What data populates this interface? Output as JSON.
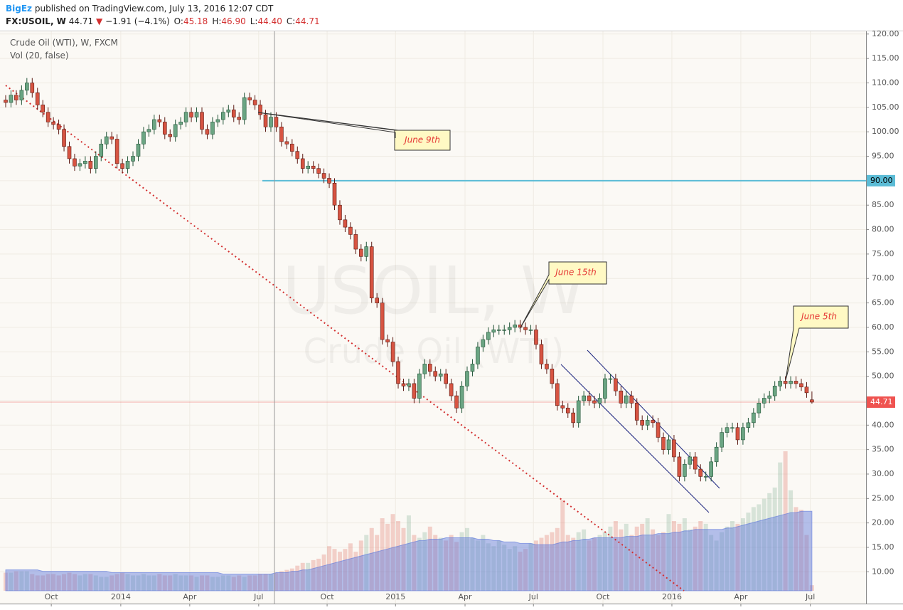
{
  "header": {
    "author": "BigEz",
    "published": "published on TradingView.com, July 13, 2016 12:07 CDT",
    "symbol": "FX:USOIL, W",
    "last": "44.71",
    "arrow": "▼",
    "change": "−1.91 (−4.1%)",
    "ohlc": [
      {
        "key": "O:",
        "value": "45.18"
      },
      {
        "key": "H:",
        "value": "46.90"
      },
      {
        "key": "L:",
        "value": "44.40"
      },
      {
        "key": "C:",
        "value": "44.71"
      }
    ]
  },
  "chart_data": {
    "type": "candlestick",
    "title": "Crude Oil (WTI), W, FXCM",
    "watermark": [
      "USOIL, W",
      "Crude Oil (WTI)"
    ],
    "up_color": "#6ba583",
    "down_color": "#d75442",
    "grid": true,
    "ylim": [
      3.5,
      120.7
    ],
    "yticks": [
      {
        "value": 10,
        "label": "10.00"
      },
      {
        "value": 15,
        "label": "15.00"
      },
      {
        "value": 20,
        "label": "20.00"
      },
      {
        "value": 25,
        "label": "25.00"
      },
      {
        "value": 30,
        "label": "30.00"
      },
      {
        "value": 35,
        "label": "35.00"
      },
      {
        "value": 40,
        "label": "40.00"
      },
      {
        "value": 45,
        "label": "45.00"
      },
      {
        "value": 50,
        "label": "50.00"
      },
      {
        "value": 55,
        "label": "55.00"
      },
      {
        "value": 60,
        "label": "60.00"
      },
      {
        "value": 65,
        "label": "65.00"
      },
      {
        "value": 70,
        "label": "70.00"
      },
      {
        "value": 75,
        "label": "75.00"
      },
      {
        "value": 80,
        "label": "80.00"
      },
      {
        "value": 85,
        "label": "85.00"
      },
      {
        "value": 90,
        "label": "90.00"
      },
      {
        "value": 95,
        "label": "95.00"
      },
      {
        "value": 100,
        "label": "100.00"
      },
      {
        "value": 105,
        "label": "105.00"
      },
      {
        "value": 110,
        "label": "110.00"
      },
      {
        "value": 115,
        "label": "115.00"
      },
      {
        "value": 120,
        "label": "120.00"
      }
    ],
    "xlim": [
      -1.07,
      162.2
    ],
    "xticks": [
      {
        "value": 8.6,
        "label": "Oct"
      },
      {
        "value": 21.7,
        "label": "2014"
      },
      {
        "value": 34.7,
        "label": "Apr"
      },
      {
        "value": 47.7,
        "label": "Jul"
      },
      {
        "value": 60.6,
        "label": "Oct"
      },
      {
        "value": 73.5,
        "label": "2015"
      },
      {
        "value": 86.6,
        "label": "Apr"
      },
      {
        "value": 99.5,
        "label": "Jul"
      },
      {
        "value": 112.6,
        "label": "Oct"
      },
      {
        "value": 125.6,
        "label": "2016"
      },
      {
        "value": 138.6,
        "label": "Apr"
      },
      {
        "value": 151.7,
        "label": "Jul"
      }
    ],
    "hlines": [
      {
        "value": 90,
        "label": "90.00",
        "color": "#5bbcd6"
      }
    ],
    "last_price": 44.71,
    "last_color": "#ef5350",
    "annotations": [
      "June 9th",
      "June 15th",
      "June 5th"
    ],
    "candles": [
      [
        106.5,
        107.5,
        105.0,
        106.0
      ],
      [
        106.0,
        108.5,
        105.0,
        107.5
      ],
      [
        107.5,
        108.5,
        105.5,
        106.5
      ],
      [
        106.5,
        109.5,
        105.5,
        108.5
      ],
      [
        108.5,
        111.0,
        107.5,
        110.0
      ],
      [
        110.0,
        111.0,
        107.0,
        108.0
      ],
      [
        108.0,
        109.0,
        104.5,
        105.5
      ],
      [
        105.5,
        106.5,
        103.0,
        104.0
      ],
      [
        104.0,
        105.0,
        101.0,
        102.0
      ],
      [
        102.0,
        103.0,
        100.5,
        101.5
      ],
      [
        101.5,
        102.5,
        99.5,
        100.5
      ],
      [
        100.5,
        101.5,
        96.0,
        97.0
      ],
      [
        97.0,
        98.0,
        93.5,
        94.5
      ],
      [
        94.5,
        95.5,
        92.0,
        93.0
      ],
      [
        93.0,
        94.5,
        92.0,
        93.5
      ],
      [
        93.5,
        95.0,
        92.5,
        94.0
      ],
      [
        94.0,
        95.0,
        91.5,
        92.5
      ],
      [
        92.5,
        96.0,
        91.5,
        95.0
      ],
      [
        95.0,
        98.5,
        94.0,
        97.5
      ],
      [
        97.5,
        100.0,
        96.5,
        99.0
      ],
      [
        99.0,
        100.0,
        97.5,
        98.5
      ],
      [
        98.5,
        99.5,
        92.5,
        93.5
      ],
      [
        93.5,
        94.5,
        91.5,
        92.5
      ],
      [
        92.5,
        95.0,
        91.5,
        94.0
      ],
      [
        94.0,
        96.0,
        93.0,
        95.0
      ],
      [
        95.0,
        98.5,
        94.0,
        97.5
      ],
      [
        97.5,
        101.0,
        96.5,
        100.0
      ],
      [
        100.0,
        101.5,
        99.0,
        100.5
      ],
      [
        100.5,
        103.5,
        99.5,
        102.5
      ],
      [
        102.5,
        103.5,
        101.0,
        102.0
      ],
      [
        102.0,
        103.0,
        98.5,
        99.5
      ],
      [
        99.5,
        100.5,
        98.0,
        99.0
      ],
      [
        99.0,
        102.5,
        98.0,
        101.5
      ],
      [
        101.5,
        103.0,
        100.5,
        102.0
      ],
      [
        102.0,
        105.0,
        101.0,
        104.0
      ],
      [
        104.0,
        105.0,
        102.0,
        103.0
      ],
      [
        103.0,
        105.0,
        102.0,
        104.0
      ],
      [
        104.0,
        105.0,
        99.5,
        100.5
      ],
      [
        100.5,
        101.5,
        98.5,
        99.5
      ],
      [
        99.5,
        103.0,
        98.5,
        102.0
      ],
      [
        102.0,
        103.5,
        101.0,
        102.5
      ],
      [
        102.5,
        105.0,
        101.5,
        104.0
      ],
      [
        104.0,
        105.5,
        103.0,
        104.5
      ],
      [
        104.5,
        105.5,
        102.0,
        103.0
      ],
      [
        103.0,
        104.0,
        101.5,
        102.5
      ],
      [
        102.5,
        108.0,
        101.5,
        107.0
      ],
      [
        107.0,
        108.0,
        105.5,
        106.5
      ],
      [
        106.5,
        107.5,
        104.5,
        105.5
      ],
      [
        105.5,
        106.5,
        102.5,
        103.5
      ],
      [
        103.5,
        104.5,
        100.0,
        101.0
      ],
      [
        101.0,
        104.0,
        100.0,
        103.0
      ],
      [
        103.0,
        104.0,
        100.0,
        101.0
      ],
      [
        101.0,
        102.0,
        97.0,
        98.0
      ],
      [
        98.0,
        99.0,
        96.5,
        97.5
      ],
      [
        97.5,
        98.5,
        95.0,
        96.0
      ],
      [
        96.0,
        97.0,
        93.5,
        94.5
      ],
      [
        94.5,
        95.5,
        91.5,
        92.5
      ],
      [
        92.5,
        94.0,
        91.5,
        93.0
      ],
      [
        93.0,
        94.0,
        91.5,
        92.5
      ],
      [
        92.5,
        93.5,
        90.5,
        91.5
      ],
      [
        91.5,
        92.5,
        89.5,
        90.5
      ],
      [
        90.5,
        91.5,
        88.5,
        89.5
      ],
      [
        89.5,
        90.5,
        84.0,
        85.0
      ],
      [
        85.0,
        86.0,
        81.0,
        82.0
      ],
      [
        82.0,
        83.0,
        79.5,
        80.5
      ],
      [
        80.5,
        81.5,
        78.0,
        79.0
      ],
      [
        79.0,
        80.0,
        75.0,
        76.0
      ],
      [
        76.0,
        77.0,
        73.5,
        74.5
      ],
      [
        74.5,
        77.5,
        73.5,
        76.5
      ],
      [
        76.5,
        77.5,
        65.0,
        66.0
      ],
      [
        66.0,
        67.0,
        64.0,
        65.0
      ],
      [
        65.0,
        66.0,
        56.5,
        57.5
      ],
      [
        57.5,
        58.5,
        56.0,
        57.0
      ],
      [
        57.0,
        58.0,
        52.0,
        53.0
      ],
      [
        53.0,
        54.0,
        47.5,
        48.5
      ],
      [
        48.5,
        49.5,
        47.0,
        48.0
      ],
      [
        48.0,
        49.5,
        47.0,
        48.5
      ],
      [
        48.5,
        49.5,
        44.5,
        45.5
      ],
      [
        45.5,
        51.5,
        44.5,
        50.5
      ],
      [
        50.5,
        53.5,
        49.5,
        52.5
      ],
      [
        52.5,
        53.5,
        50.0,
        51.0
      ],
      [
        51.0,
        52.0,
        49.0,
        50.0
      ],
      [
        50.0,
        51.5,
        49.0,
        50.5
      ],
      [
        50.5,
        51.5,
        47.5,
        48.5
      ],
      [
        48.5,
        49.5,
        45.0,
        46.0
      ],
      [
        46.0,
        47.0,
        42.5,
        43.5
      ],
      [
        43.5,
        49.0,
        42.5,
        48.0
      ],
      [
        48.0,
        52.0,
        47.0,
        51.0
      ],
      [
        51.0,
        53.5,
        50.0,
        52.5
      ],
      [
        52.5,
        57.0,
        51.5,
        56.0
      ],
      [
        56.0,
        58.5,
        55.0,
        57.5
      ],
      [
        57.5,
        60.0,
        56.5,
        59.0
      ],
      [
        59.0,
        60.5,
        58.0,
        59.5
      ],
      [
        59.5,
        60.5,
        58.5,
        59.5
      ],
      [
        59.5,
        60.5,
        58.5,
        59.5
      ],
      [
        59.5,
        61.0,
        58.5,
        60.0
      ],
      [
        60.0,
        61.5,
        59.0,
        60.5
      ],
      [
        60.5,
        61.5,
        59.0,
        60.0
      ],
      [
        60.0,
        61.0,
        58.5,
        59.5
      ],
      [
        59.5,
        60.5,
        58.5,
        59.5
      ],
      [
        59.5,
        60.5,
        55.5,
        56.5
      ],
      [
        56.5,
        57.5,
        51.5,
        52.5
      ],
      [
        52.5,
        53.5,
        50.5,
        51.5
      ],
      [
        51.5,
        52.5,
        47.5,
        48.5
      ],
      [
        48.5,
        49.5,
        43.0,
        44.0
      ],
      [
        44.0,
        45.0,
        42.5,
        43.5
      ],
      [
        43.5,
        44.5,
        41.5,
        42.5
      ],
      [
        42.5,
        43.5,
        39.5,
        40.5
      ],
      [
        40.5,
        46.0,
        39.5,
        45.0
      ],
      [
        45.0,
        47.0,
        44.0,
        46.0
      ],
      [
        46.0,
        47.0,
        44.0,
        45.0
      ],
      [
        45.0,
        46.0,
        43.5,
        44.5
      ],
      [
        44.5,
        46.5,
        43.5,
        45.5
      ],
      [
        45.5,
        50.5,
        44.5,
        49.5
      ],
      [
        49.5,
        50.5,
        48.5,
        49.5
      ],
      [
        49.5,
        50.5,
        46.0,
        47.0
      ],
      [
        47.0,
        48.0,
        43.5,
        44.5
      ],
      [
        44.5,
        47.0,
        43.5,
        46.0
      ],
      [
        46.0,
        47.0,
        43.5,
        44.5
      ],
      [
        44.5,
        45.5,
        40.0,
        41.0
      ],
      [
        41.0,
        42.0,
        39.0,
        40.0
      ],
      [
        40.0,
        42.0,
        39.0,
        41.0
      ],
      [
        41.0,
        42.0,
        39.5,
        40.5
      ],
      [
        40.5,
        41.5,
        36.5,
        37.5
      ],
      [
        37.5,
        38.5,
        34.0,
        35.0
      ],
      [
        35.0,
        38.0,
        34.0,
        37.0
      ],
      [
        37.0,
        38.0,
        32.5,
        33.5
      ],
      [
        33.5,
        34.5,
        28.5,
        29.5
      ],
      [
        29.5,
        33.0,
        28.5,
        32.0
      ],
      [
        32.0,
        34.5,
        31.0,
        33.5
      ],
      [
        33.5,
        34.5,
        30.0,
        31.0
      ],
      [
        31.0,
        32.0,
        28.5,
        29.5
      ],
      [
        29.5,
        30.5,
        28.5,
        29.5
      ],
      [
        29.5,
        33.5,
        28.5,
        32.5
      ],
      [
        32.5,
        36.5,
        31.5,
        35.5
      ],
      [
        35.5,
        39.5,
        34.5,
        38.5
      ],
      [
        38.5,
        40.5,
        37.5,
        39.5
      ],
      [
        39.5,
        40.5,
        38.5,
        39.5
      ],
      [
        39.5,
        40.5,
        36.0,
        37.0
      ],
      [
        37.0,
        40.5,
        36.0,
        39.5
      ],
      [
        39.5,
        41.5,
        38.5,
        40.5
      ],
      [
        40.5,
        43.5,
        39.5,
        42.5
      ],
      [
        42.5,
        45.5,
        41.5,
        44.5
      ],
      [
        44.5,
        46.5,
        43.5,
        45.5
      ],
      [
        45.5,
        47.0,
        44.5,
        46.0
      ],
      [
        46.0,
        49.0,
        45.0,
        48.0
      ],
      [
        48.0,
        50.0,
        47.0,
        49.0
      ],
      [
        49.0,
        50.0,
        47.5,
        48.5
      ],
      [
        48.5,
        50.0,
        47.5,
        49.0
      ],
      [
        49.0,
        50.0,
        47.5,
        48.5
      ],
      [
        48.5,
        49.5,
        47.0,
        47.8
      ],
      [
        47.8,
        48.8,
        45.6,
        46.62
      ],
      [
        45.18,
        46.9,
        44.4,
        44.71
      ]
    ],
    "volume": {
      "name": "Vol (20, false)",
      "ylim": [
        0,
        100
      ],
      "ma_color": "#5b76dc",
      "values": [
        13,
        13,
        14,
        14,
        14,
        12,
        11,
        11,
        12,
        12,
        11,
        12,
        13,
        12,
        11,
        12,
        12,
        11,
        10,
        10,
        11,
        12,
        13,
        12,
        11,
        11,
        12,
        11,
        11,
        12,
        11,
        11,
        12,
        11,
        11,
        11,
        10,
        11,
        11,
        10,
        10,
        11,
        11,
        10,
        11,
        10,
        11,
        11,
        12,
        12,
        12,
        13,
        14,
        15,
        16,
        18,
        20,
        20,
        22,
        23,
        26,
        32,
        30,
        28,
        30,
        34,
        28,
        36,
        40,
        45,
        40,
        52,
        48,
        55,
        50,
        45,
        54,
        40,
        38,
        42,
        46,
        40,
        38,
        36,
        40,
        35,
        42,
        45,
        38,
        36,
        40,
        34,
        32,
        36,
        33,
        30,
        32,
        28,
        30,
        34,
        36,
        38,
        40,
        42,
        45,
        65,
        40,
        38,
        42,
        44,
        36,
        38,
        40,
        42,
        46,
        50,
        44,
        48,
        40,
        46,
        48,
        52,
        44,
        40,
        42,
        55,
        50,
        48,
        52,
        44,
        46,
        50,
        48,
        40,
        36,
        42,
        46,
        50,
        48,
        52,
        56,
        60,
        62,
        66,
        70,
        74,
        92,
        100,
        72,
        60,
        58,
        40,
        4
      ],
      "ma": [
        15,
        15,
        15,
        15,
        15,
        15,
        15,
        14,
        14,
        14,
        14,
        14,
        14,
        14,
        14,
        14,
        14,
        14,
        14,
        14,
        13,
        13,
        13,
        13,
        13,
        13,
        13,
        13,
        13,
        13,
        13,
        13,
        13,
        13,
        13,
        13,
        13,
        13,
        13,
        13,
        13,
        12,
        12,
        12,
        12,
        12,
        12,
        12,
        12,
        12,
        12,
        13,
        13,
        13,
        14,
        14,
        15,
        15,
        16,
        17,
        18,
        19,
        20,
        21,
        22,
        23,
        24,
        25,
        26,
        27,
        28,
        29,
        30,
        31,
        32,
        33,
        34,
        35,
        36,
        36,
        37,
        37,
        37,
        38,
        38,
        38,
        38,
        38,
        38,
        37,
        37,
        37,
        36,
        36,
        35,
        35,
        35,
        34,
        34,
        34,
        33,
        33,
        33,
        33,
        34,
        35,
        35,
        36,
        36,
        37,
        37,
        38,
        38,
        38,
        38,
        38,
        38,
        39,
        39,
        39,
        40,
        40,
        40,
        41,
        41,
        41,
        42,
        42,
        43,
        43,
        44,
        44,
        44,
        44,
        44,
        44,
        45,
        45,
        46,
        47,
        48,
        49,
        50,
        51,
        52,
        53,
        54,
        55,
        56,
        56,
        57,
        57,
        57
      ]
    }
  }
}
